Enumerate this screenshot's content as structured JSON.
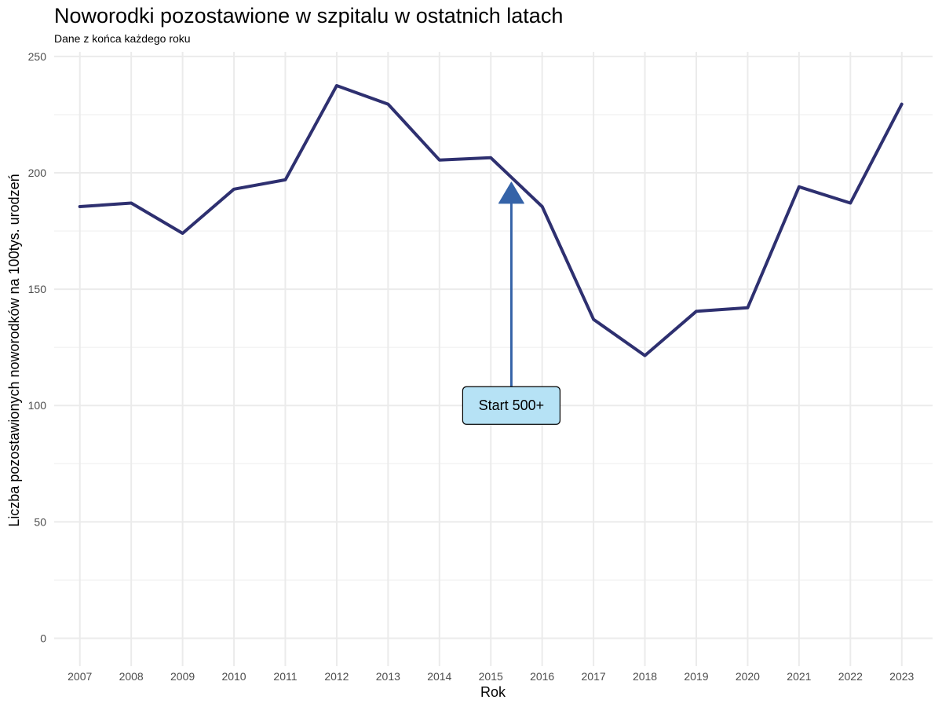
{
  "chart_data": {
    "type": "line",
    "title": "Noworodki pozostawione w szpitalu w ostatnich latach",
    "subtitle": "Dane z końca każdego roku",
    "xlabel": "Rok",
    "ylabel": "Liczba pozostawionych noworodków na 100tys. urodzeń",
    "x": [
      2007,
      2008,
      2009,
      2010,
      2011,
      2012,
      2013,
      2014,
      2015,
      2016,
      2017,
      2018,
      2019,
      2020,
      2021,
      2022,
      2023
    ],
    "series": [
      {
        "values": [
          185.5,
          187,
          174,
          193,
          197,
          237.5,
          229.5,
          205.5,
          206.5,
          185.5,
          137,
          121.5,
          140.5,
          142,
          194,
          187,
          229.5
        ],
        "color": "#2e3070"
      }
    ],
    "xlim": [
      2006.5,
      2023.6
    ],
    "ylim": [
      -12,
      252
    ],
    "yticks": [
      0,
      50,
      100,
      150,
      200,
      250
    ],
    "yminor": [
      25,
      75,
      125,
      175,
      225
    ],
    "grid": true,
    "annotation": {
      "label": "Start 500+",
      "x": 2015.4,
      "arrow_from_y": 108,
      "arrow_to_y": 196,
      "label_y": 100,
      "fill": "#b6e2f5",
      "arrow_color": "#3563a8"
    }
  }
}
